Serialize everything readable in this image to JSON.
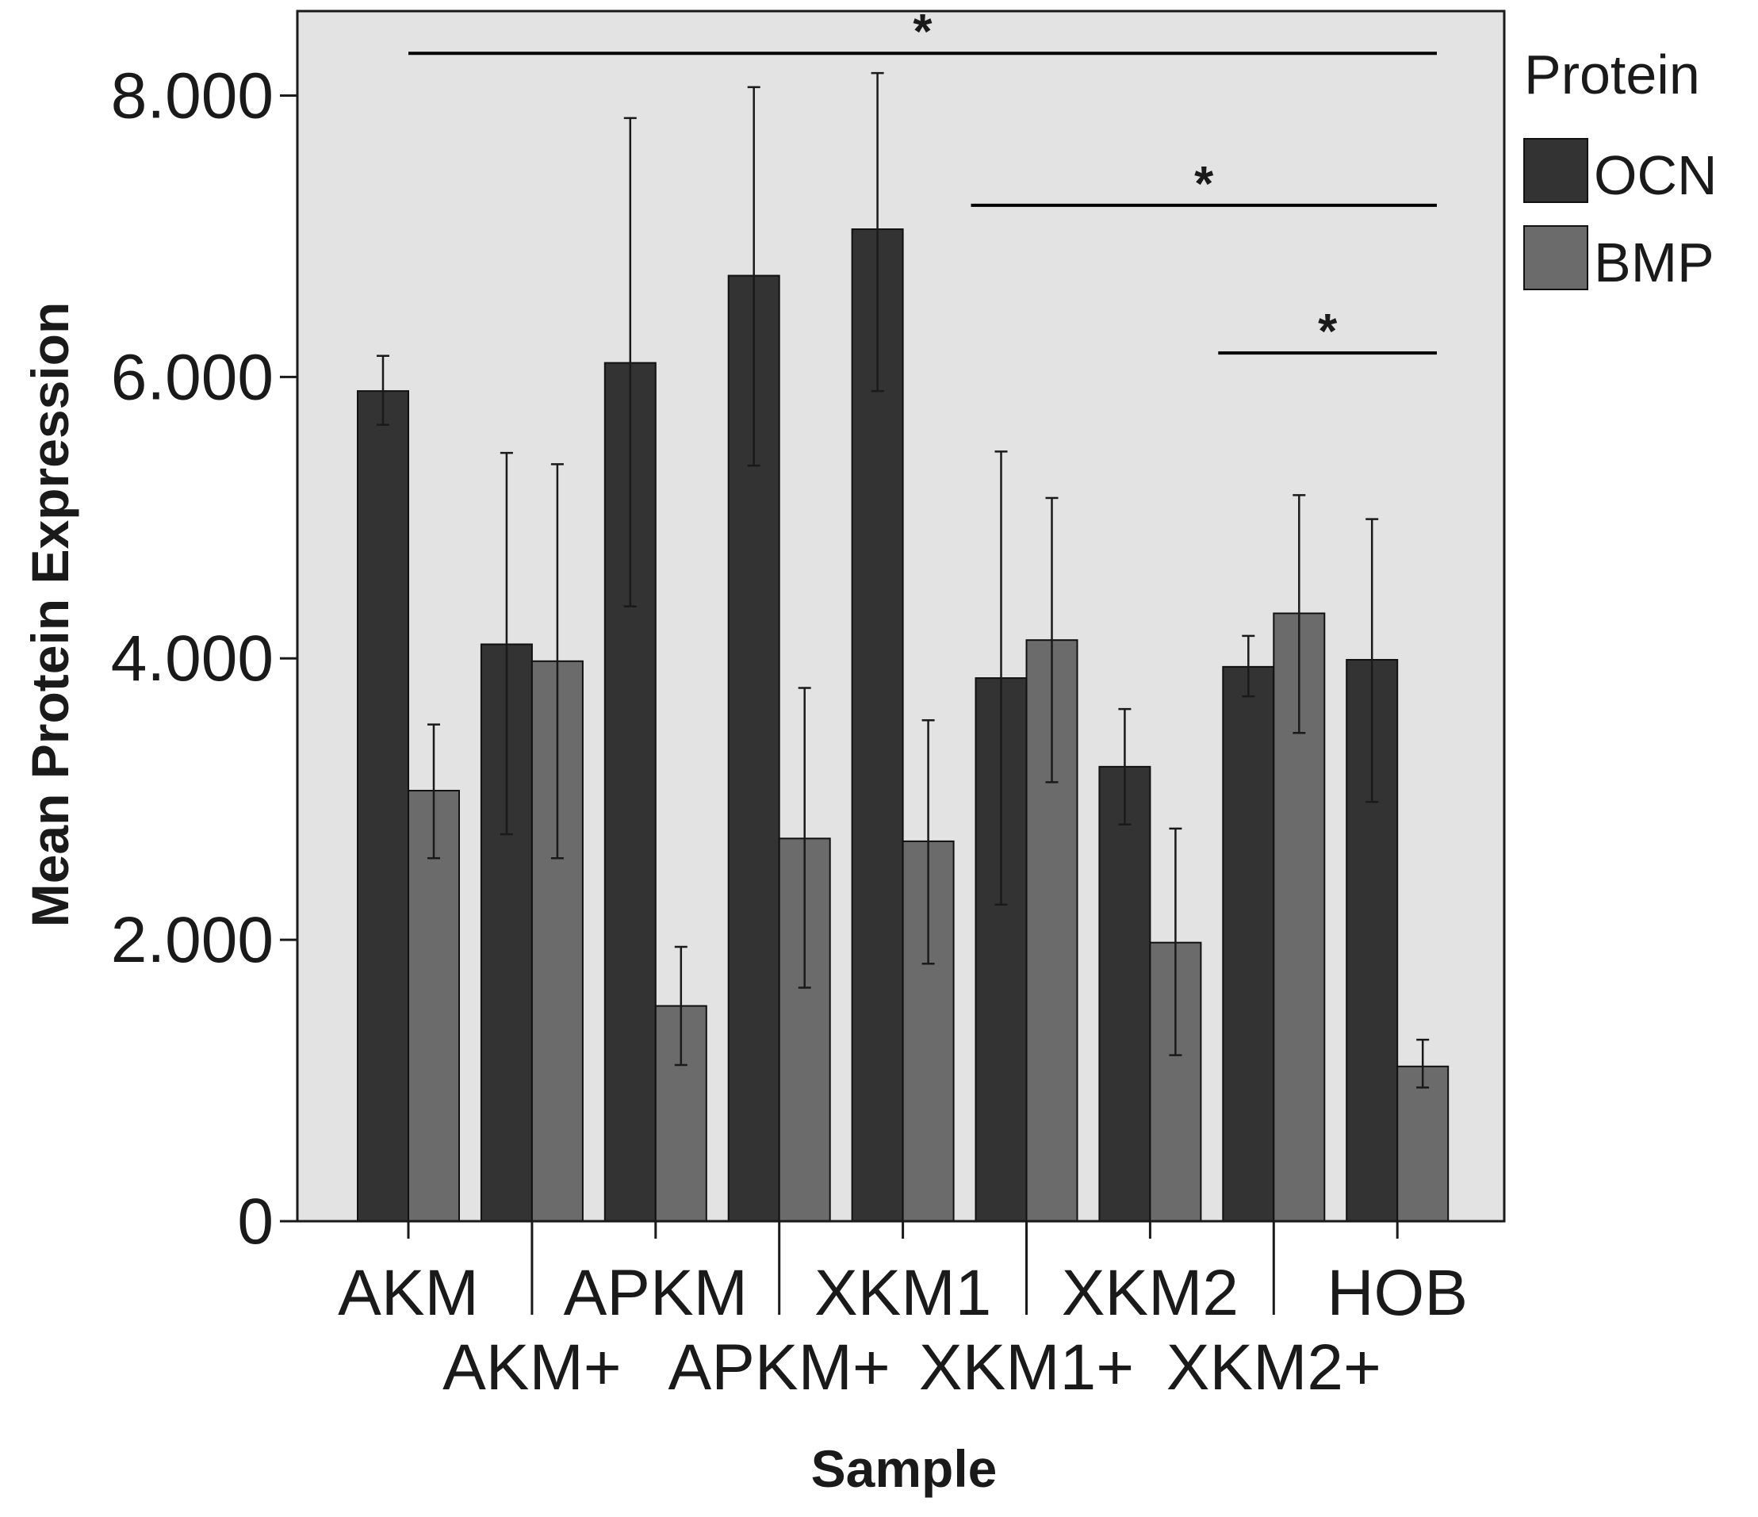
{
  "chart_data": {
    "type": "bar",
    "xlabel": "Sample",
    "ylabel": "Mean Protein Expression",
    "ylim": [
      0,
      8.6
    ],
    "yticks": [
      0,
      2,
      4,
      6,
      8
    ],
    "ytick_labels": [
      "0",
      "2.000",
      "4.000",
      "6.000",
      "8.000"
    ],
    "grid": false,
    "legend_position": "right",
    "legend_title": "Protein",
    "categories": [
      "AKM",
      "AKM+",
      "APKM",
      "APKM+",
      "XKM1",
      "XKM1+",
      "XKM2",
      "XKM2+",
      "HOB"
    ],
    "category_labels": [
      "AKM",
      "AKM+",
      "APKM",
      "APKM+",
      "XKM1",
      "XKM1+",
      "XKM2",
      "XKM2+",
      "HOB"
    ],
    "series": [
      {
        "name": "OCN",
        "color": "#333333",
        "values": [
          5.9,
          4.1,
          6.1,
          6.72,
          7.05,
          3.86,
          3.23,
          3.94,
          3.99
        ],
        "error_low": [
          5.66,
          2.75,
          4.37,
          5.37,
          5.9,
          2.25,
          2.82,
          3.73,
          2.98
        ],
        "error_high": [
          6.15,
          5.46,
          7.84,
          8.06,
          8.16,
          5.47,
          3.64,
          4.16,
          4.99
        ]
      },
      {
        "name": "BMP",
        "color": "#6b6b6b",
        "values": [
          3.06,
          3.98,
          1.53,
          2.72,
          2.7,
          4.13,
          1.98,
          4.32,
          1.1
        ],
        "error_low": [
          2.58,
          2.58,
          1.11,
          1.66,
          1.83,
          3.12,
          1.18,
          3.47,
          0.95
        ],
        "error_high": [
          3.53,
          5.38,
          1.95,
          3.79,
          3.56,
          5.14,
          2.79,
          5.16,
          1.29
        ]
      }
    ],
    "annotations": [
      {
        "text": "*",
        "y": 8.3,
        "from_category": "AKM",
        "to_category": "HOB"
      },
      {
        "text": "*",
        "y": 7.22,
        "from_category": "XKM1+",
        "to_category": "HOB"
      },
      {
        "text": "*",
        "y": 6.17,
        "from_category": "XKM2+",
        "to_category": "HOB"
      }
    ]
  }
}
